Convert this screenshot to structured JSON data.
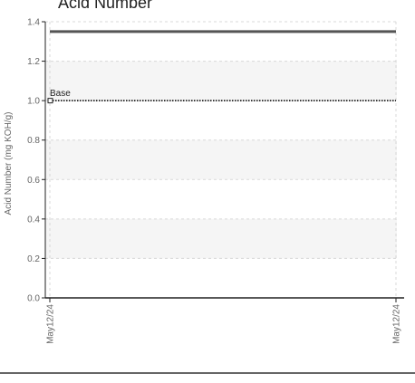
{
  "chart_data": {
    "type": "line",
    "title": "Acid Number",
    "ylabel": "Acid Number (mg KOH/g)",
    "ylim": [
      0,
      1.4
    ],
    "y_ticks": [
      "0.0",
      "0.2",
      "0.4",
      "0.6",
      "0.8",
      "1.0",
      "1.2",
      "1.4"
    ],
    "x_ticks": [
      "May12/24",
      "May12/24"
    ],
    "grid": true,
    "series": [
      {
        "name": "",
        "style": "solid",
        "color": "#555555",
        "x": [
          "May12/24",
          "May12/24"
        ],
        "values": [
          1.35,
          1.35
        ]
      },
      {
        "name": "Base",
        "style": "dotted",
        "color": "#222222",
        "x": [
          "May12/24",
          "May12/24"
        ],
        "values": [
          1.0,
          1.0
        ]
      }
    ],
    "colors": {
      "band": "#f5f5f5",
      "grid": "#d8d8d8",
      "axis": "#222222"
    }
  }
}
